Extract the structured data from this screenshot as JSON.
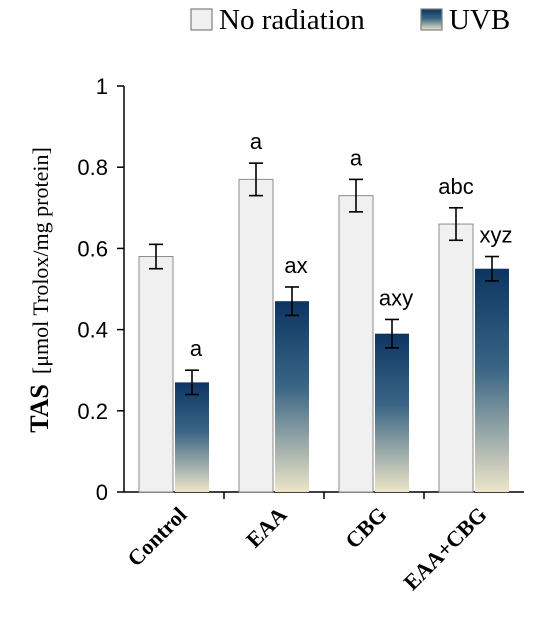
{
  "chart_data": {
    "type": "bar",
    "ylabel_name": "TAS",
    "ylabel_unit": "[μmol Trolox/mg protein]",
    "ylim": [
      0,
      1
    ],
    "yticks": [
      "0",
      "0.2",
      "0.4",
      "0.6",
      "0.8",
      "1"
    ],
    "ytick_values": [
      0,
      0.2,
      0.4,
      0.6,
      0.8,
      1
    ],
    "categories": [
      "Control",
      "EAA",
      "CBG",
      "EAA+CBG"
    ],
    "legend_position": "top-right",
    "grid": false,
    "series": [
      {
        "name": "No radiation",
        "values": [
          0.58,
          0.77,
          0.73,
          0.66
        ],
        "errors": [
          0.03,
          0.04,
          0.04,
          0.04
        ],
        "annotations": [
          "",
          "a",
          "a",
          "abc"
        ],
        "color": "#f0f0f0"
      },
      {
        "name": "UVB",
        "values": [
          0.27,
          0.47,
          0.39,
          0.55
        ],
        "errors": [
          0.03,
          0.035,
          0.035,
          0.03
        ],
        "annotations": [
          "a",
          "ax",
          "axy",
          "xyz"
        ],
        "gradient_top": "#0d3562",
        "gradient_bottom": "#ede5c8"
      }
    ]
  }
}
